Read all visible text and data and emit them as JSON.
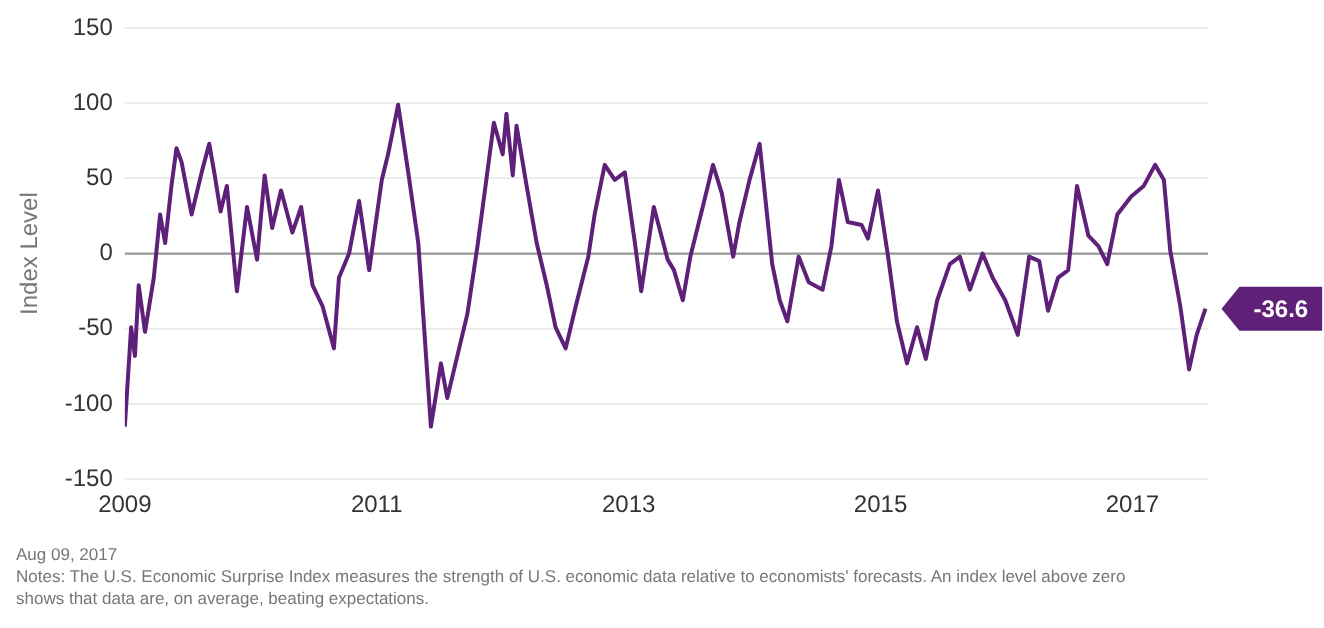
{
  "chart_data": {
    "type": "line",
    "ylabel": "Index Level",
    "x": [
      2009.0,
      2009.05,
      2009.08,
      2009.11,
      2009.16,
      2009.23,
      2009.28,
      2009.32,
      2009.37,
      2009.41,
      2009.45,
      2009.53,
      2009.61,
      2009.67,
      2009.71,
      2009.76,
      2009.81,
      2009.89,
      2009.97,
      2010.05,
      2010.11,
      2010.17,
      2010.24,
      2010.33,
      2010.4,
      2010.49,
      2010.57,
      2010.66,
      2010.7,
      2010.78,
      2010.86,
      2010.94,
      2011.04,
      2011.09,
      2011.17,
      2011.25,
      2011.33,
      2011.43,
      2011.51,
      2011.56,
      2011.64,
      2011.72,
      2011.8,
      2011.87,
      2011.93,
      2012.0,
      2012.03,
      2012.08,
      2012.11,
      2012.19,
      2012.27,
      2012.35,
      2012.42,
      2012.5,
      2012.58,
      2012.68,
      2012.73,
      2012.81,
      2012.89,
      2012.97,
      2013.05,
      2013.1,
      2013.2,
      2013.31,
      2013.36,
      2013.43,
      2013.49,
      2013.6,
      2013.67,
      2013.74,
      2013.83,
      2013.88,
      2013.96,
      2014.04,
      2014.14,
      2014.2,
      2014.26,
      2014.35,
      2014.43,
      2014.54,
      2014.61,
      2014.67,
      2014.74,
      2014.85,
      2014.9,
      2014.98,
      2015.06,
      2015.13,
      2015.21,
      2015.29,
      2015.36,
      2015.45,
      2015.55,
      2015.63,
      2015.71,
      2015.81,
      2015.89,
      2015.99,
      2016.09,
      2016.18,
      2016.26,
      2016.33,
      2016.41,
      2016.49,
      2016.56,
      2016.65,
      2016.73,
      2016.8,
      2016.88,
      2016.99,
      2017.09,
      2017.18,
      2017.25,
      2017.3,
      2017.38,
      2017.45,
      2017.51,
      2017.58
    ],
    "series": [
      {
        "color": "#5f2079",
        "values": [
          -115,
          -49,
          -68,
          -21,
          -52,
          -16,
          26,
          7,
          45,
          70,
          61,
          26,
          54,
          73,
          54,
          28,
          45,
          -25,
          31,
          -4,
          52,
          17,
          42,
          14,
          31,
          -21,
          -35,
          -63,
          -16,
          0,
          35,
          -11,
          49,
          66,
          99,
          54,
          7,
          -115,
          -73,
          -96,
          -68,
          -40,
          5,
          49,
          87,
          66,
          93,
          52,
          85,
          45,
          7,
          -21,
          -49,
          -63,
          -35,
          -2,
          26,
          59,
          49,
          54,
          7,
          -25,
          31,
          -4,
          -11,
          -31,
          -2,
          35,
          59,
          40,
          -2,
          21,
          49,
          73,
          -7,
          -31,
          -45,
          -2,
          -19,
          -24,
          5,
          49,
          21,
          19,
          10,
          42,
          -2,
          -45,
          -73,
          -49,
          -70,
          -31,
          -7,
          -2,
          -24,
          0,
          -16,
          -31,
          -54,
          -2,
          -5,
          -38,
          -16,
          -11,
          45,
          12,
          5,
          -7,
          26,
          38,
          45,
          59,
          49,
          2,
          -35,
          -77,
          -54,
          -36.6
        ]
      }
    ],
    "xlim": [
      2009,
      2017.6
    ],
    "xticks": [
      2009,
      2011,
      2013,
      2015,
      2017
    ],
    "ylim": [
      -150,
      150
    ],
    "yticks": [
      -150,
      -100,
      -50,
      0,
      50,
      100,
      150
    ],
    "grid": "y",
    "legend": false,
    "marker": "none",
    "line_style": "solid",
    "ref_lines": [
      {
        "axis": "y",
        "value": 0,
        "color": "#999999"
      }
    ],
    "annotations": [
      {
        "text": "-36.6",
        "x": 2017.58,
        "y": -36.6
      },
      "Aug 09, 2017",
      "Notes: The U.S. Economic Surprise Index measures the strength of U.S. economic data relative to economists' forecasts. An index level above zero shows that data are, on average, beating expectations."
    ]
  }
}
